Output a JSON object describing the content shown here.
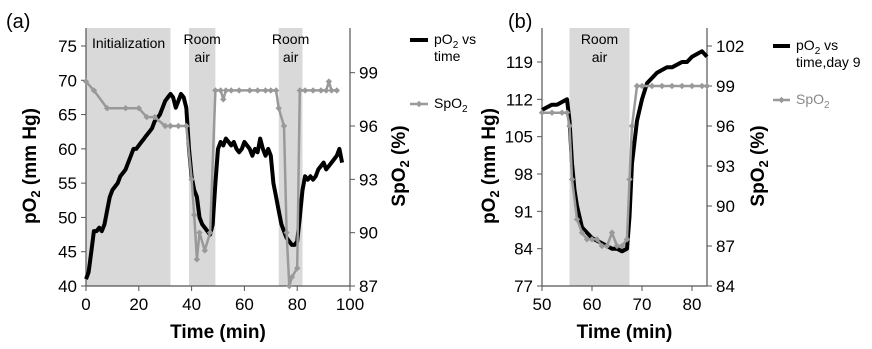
{
  "chart_data": [
    {
      "panel_label": "(a)",
      "type": "line",
      "xlabel": "Time (min)",
      "ylabel": "pO2 (mm Hg)",
      "y2label": "SpO2 (%)",
      "xlim": [
        0,
        100
      ],
      "ylim": [
        40,
        75
      ],
      "y2lim": [
        87,
        100.5
      ],
      "xticks": [
        "0",
        "20",
        "40",
        "60",
        "80",
        "100"
      ],
      "yticks": [
        "40",
        "45",
        "50",
        "55",
        "60",
        "65",
        "70",
        "75"
      ],
      "y2ticks": [
        "87",
        "90",
        "93",
        "96",
        "99"
      ],
      "shaded_regions": [
        {
          "label": "Initialization",
          "x": [
            0,
            32
          ]
        },
        {
          "label_lines": [
            "Room",
            "air"
          ],
          "x": [
            39,
            49
          ]
        },
        {
          "label_lines": [
            "Room",
            "air"
          ],
          "x": [
            73,
            82
          ]
        }
      ],
      "series": [
        {
          "name_lines": [
            "pO2 vs",
            "time"
          ],
          "axis": "left",
          "color": "#000000",
          "x": [
            0,
            1,
            2,
            3,
            4,
            5,
            6,
            7,
            8,
            9,
            10,
            11,
            12,
            13,
            14,
            15,
            16,
            17,
            18,
            19,
            20,
            21,
            22,
            23,
            24,
            25,
            26,
            27,
            28,
            29,
            30,
            31,
            32,
            33,
            34,
            35,
            36,
            37,
            38,
            39,
            40,
            41,
            42,
            43,
            44,
            45,
            46,
            47,
            48,
            49,
            50,
            51,
            52,
            53,
            54,
            55,
            56,
            57,
            58,
            59,
            60,
            61,
            62,
            63,
            64,
            65,
            66,
            67,
            68,
            69,
            70,
            71,
            72,
            73,
            74,
            75,
            76,
            77,
            78,
            79,
            80,
            81,
            82,
            83,
            84,
            85,
            86,
            87,
            88,
            89,
            90,
            91,
            92,
            93,
            94,
            95,
            96,
            97
          ],
          "y": [
            41,
            42,
            45,
            48,
            48,
            48.5,
            48,
            49,
            51,
            53,
            54,
            54.5,
            55,
            56,
            56.5,
            57,
            58,
            59,
            60,
            60,
            60.5,
            61,
            61.5,
            62,
            62.5,
            63,
            64,
            64.5,
            65,
            66,
            67,
            67.5,
            68,
            67.5,
            66,
            67,
            68,
            67.5,
            66,
            60,
            56,
            54,
            53,
            50,
            49,
            48.5,
            48,
            47.5,
            49,
            55,
            60,
            61,
            60.5,
            61.5,
            61,
            60.5,
            61,
            60,
            59.5,
            60,
            61,
            60.5,
            60,
            59,
            60,
            59.5,
            61.5,
            60,
            59,
            60,
            59,
            55,
            53,
            51,
            49,
            48,
            47,
            46.5,
            46,
            46,
            46.5,
            50,
            54,
            56,
            55.5,
            56,
            55.5,
            56,
            57,
            57.5,
            58,
            57,
            57.5,
            58,
            58.5,
            59,
            60,
            58
          ]
        },
        {
          "name": "SpO2",
          "axis": "right",
          "color": "#999999",
          "x": [
            0,
            3,
            8,
            15,
            20,
            23,
            26,
            30,
            32,
            35,
            38,
            40,
            41,
            42,
            43,
            45,
            47,
            49,
            51,
            52,
            53,
            55,
            58,
            62,
            65,
            68,
            70,
            72,
            73,
            75,
            76,
            77,
            78,
            80,
            81,
            83,
            86,
            89,
            91,
            92,
            93,
            95
          ],
          "y": [
            98.5,
            98,
            97,
            97,
            97,
            96.5,
            96.5,
            96,
            96,
            96,
            96,
            93,
            91,
            88.5,
            90,
            89,
            90,
            98,
            98,
            97.5,
            98,
            98,
            98,
            98,
            98,
            98,
            98,
            98,
            97,
            96,
            90,
            87,
            87.5,
            88,
            98,
            98,
            98,
            98,
            98,
            98.5,
            98,
            98
          ]
        }
      ]
    },
    {
      "panel_label": "(b)",
      "type": "line",
      "xlabel": "Time (min)",
      "ylabel": "pO2 (mm Hg)",
      "y2label": "SpO2 (%)",
      "xlim": [
        50,
        83
      ],
      "ylim": [
        77,
        122
      ],
      "y2lim": [
        84,
        102
      ],
      "xticks": [
        "50",
        "60",
        "70",
        "80"
      ],
      "yticks": [
        "77",
        "84",
        "91",
        "98",
        "105",
        "112",
        "119"
      ],
      "y2ticks": [
        "84",
        "87",
        "90",
        "93",
        "96",
        "99",
        "102"
      ],
      "shaded_regions": [
        {
          "label_lines": [
            "Room",
            "air"
          ],
          "x": [
            55.5,
            67.5
          ]
        }
      ],
      "series": [
        {
          "name_lines": [
            "pO2 vs",
            "time,day 9"
          ],
          "axis": "left",
          "color": "#000000",
          "x": [
            50,
            51,
            52,
            53,
            54,
            55,
            55.5,
            56,
            56.5,
            57,
            57.5,
            58,
            59,
            60,
            61,
            62,
            63,
            64,
            65,
            66,
            67,
            67.5,
            68,
            69,
            70,
            71,
            72,
            73,
            74,
            75,
            76,
            77,
            78,
            79,
            80,
            81,
            82,
            83
          ],
          "y": [
            110,
            110.5,
            111,
            111,
            111.5,
            112,
            108,
            100,
            95,
            92,
            90,
            88,
            87,
            86,
            85.5,
            85,
            84.5,
            84,
            84,
            83.5,
            84,
            90,
            100,
            108,
            112,
            115,
            116,
            117,
            117.5,
            118,
            118,
            118.5,
            119,
            119,
            120,
            120.5,
            121,
            120
          ]
        },
        {
          "name": "SpO2",
          "axis": "right",
          "color": "#999999",
          "x": [
            50,
            52,
            54,
            55,
            55.5,
            56,
            57,
            58,
            59,
            60,
            61,
            62,
            63,
            64,
            65,
            66,
            67,
            67.5,
            68,
            69,
            70,
            72,
            74,
            76,
            78,
            80,
            82,
            83
          ],
          "y": [
            97,
            97,
            97,
            97,
            96,
            92,
            89,
            88,
            87.5,
            87.5,
            87.5,
            87,
            87,
            88,
            87,
            87,
            87.5,
            92,
            96,
            99,
            99,
            99,
            99,
            99,
            99,
            99,
            99,
            99
          ]
        }
      ]
    }
  ]
}
